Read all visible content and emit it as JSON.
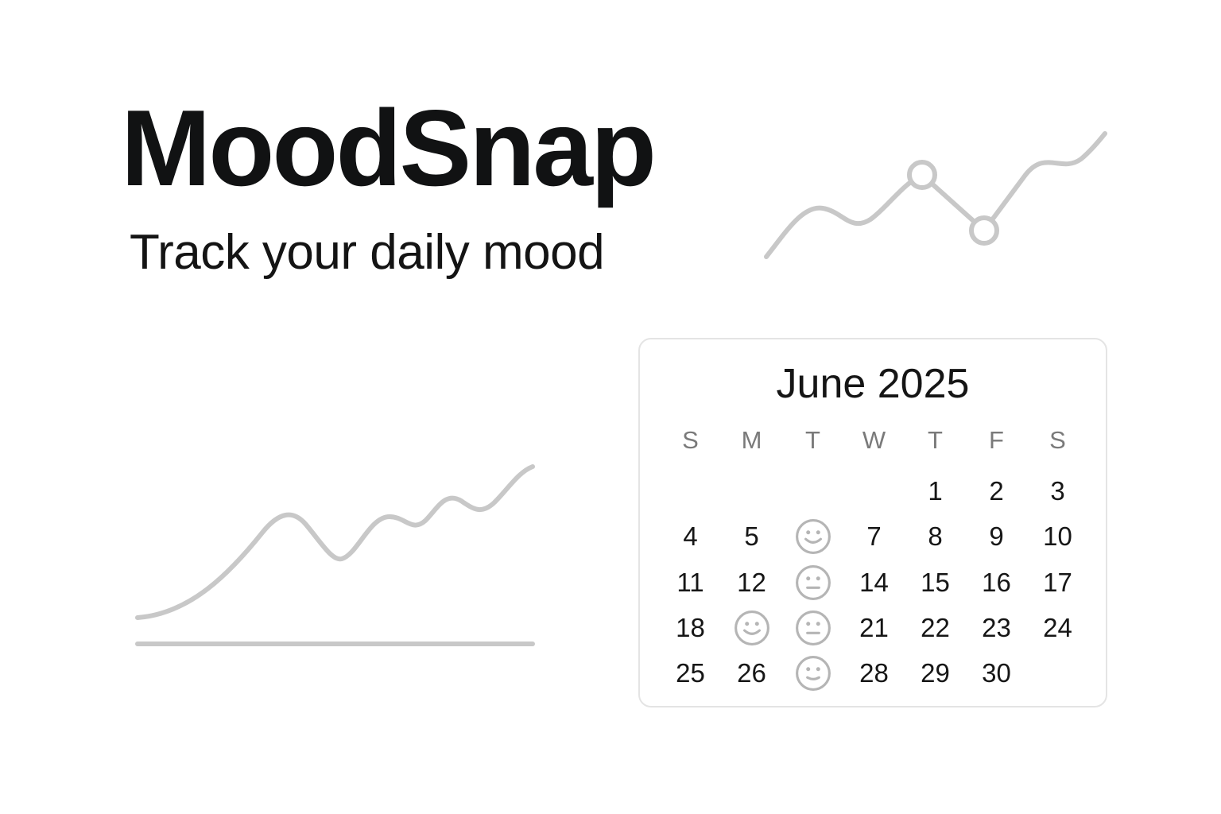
{
  "app": {
    "title": "MoodSnap",
    "subtitle": "Track your daily mood"
  },
  "colors": {
    "title": "#111213",
    "chart_line": "#c8c8c8",
    "card_border": "#e4e4e4",
    "weekday_text": "#7a7a7a",
    "mood_icon": "#b5b5b5"
  },
  "calendar": {
    "month_label": "June 2025",
    "weekdays": [
      "S",
      "M",
      "T",
      "W",
      "T",
      "F",
      "S"
    ],
    "weeks": [
      [
        {
          "label": ""
        },
        {
          "label": ""
        },
        {
          "label": ""
        },
        {
          "label": ""
        },
        {
          "label": "1"
        },
        {
          "label": "2"
        },
        {
          "label": "3"
        }
      ],
      [
        {
          "label": "4"
        },
        {
          "label": "5"
        },
        {
          "label": "",
          "mood": "happy"
        },
        {
          "label": "7"
        },
        {
          "label": "8"
        },
        {
          "label": "9"
        },
        {
          "label": "10"
        }
      ],
      [
        {
          "label": "11"
        },
        {
          "label": "12"
        },
        {
          "label": "",
          "mood": "neutral"
        },
        {
          "label": "14"
        },
        {
          "label": "15"
        },
        {
          "label": "16"
        },
        {
          "label": "17"
        }
      ],
      [
        {
          "label": "18"
        },
        {
          "label": "",
          "mood": "happy"
        },
        {
          "label": "",
          "mood": "neutral"
        },
        {
          "label": "21"
        },
        {
          "label": "22"
        },
        {
          "label": "23"
        },
        {
          "label": "24"
        }
      ],
      [
        {
          "label": "25"
        },
        {
          "label": "26"
        },
        {
          "label": "",
          "mood": "slight-smile"
        },
        {
          "label": "28"
        },
        {
          "label": "29"
        },
        {
          "label": "30"
        },
        {
          "label": ""
        }
      ]
    ]
  }
}
